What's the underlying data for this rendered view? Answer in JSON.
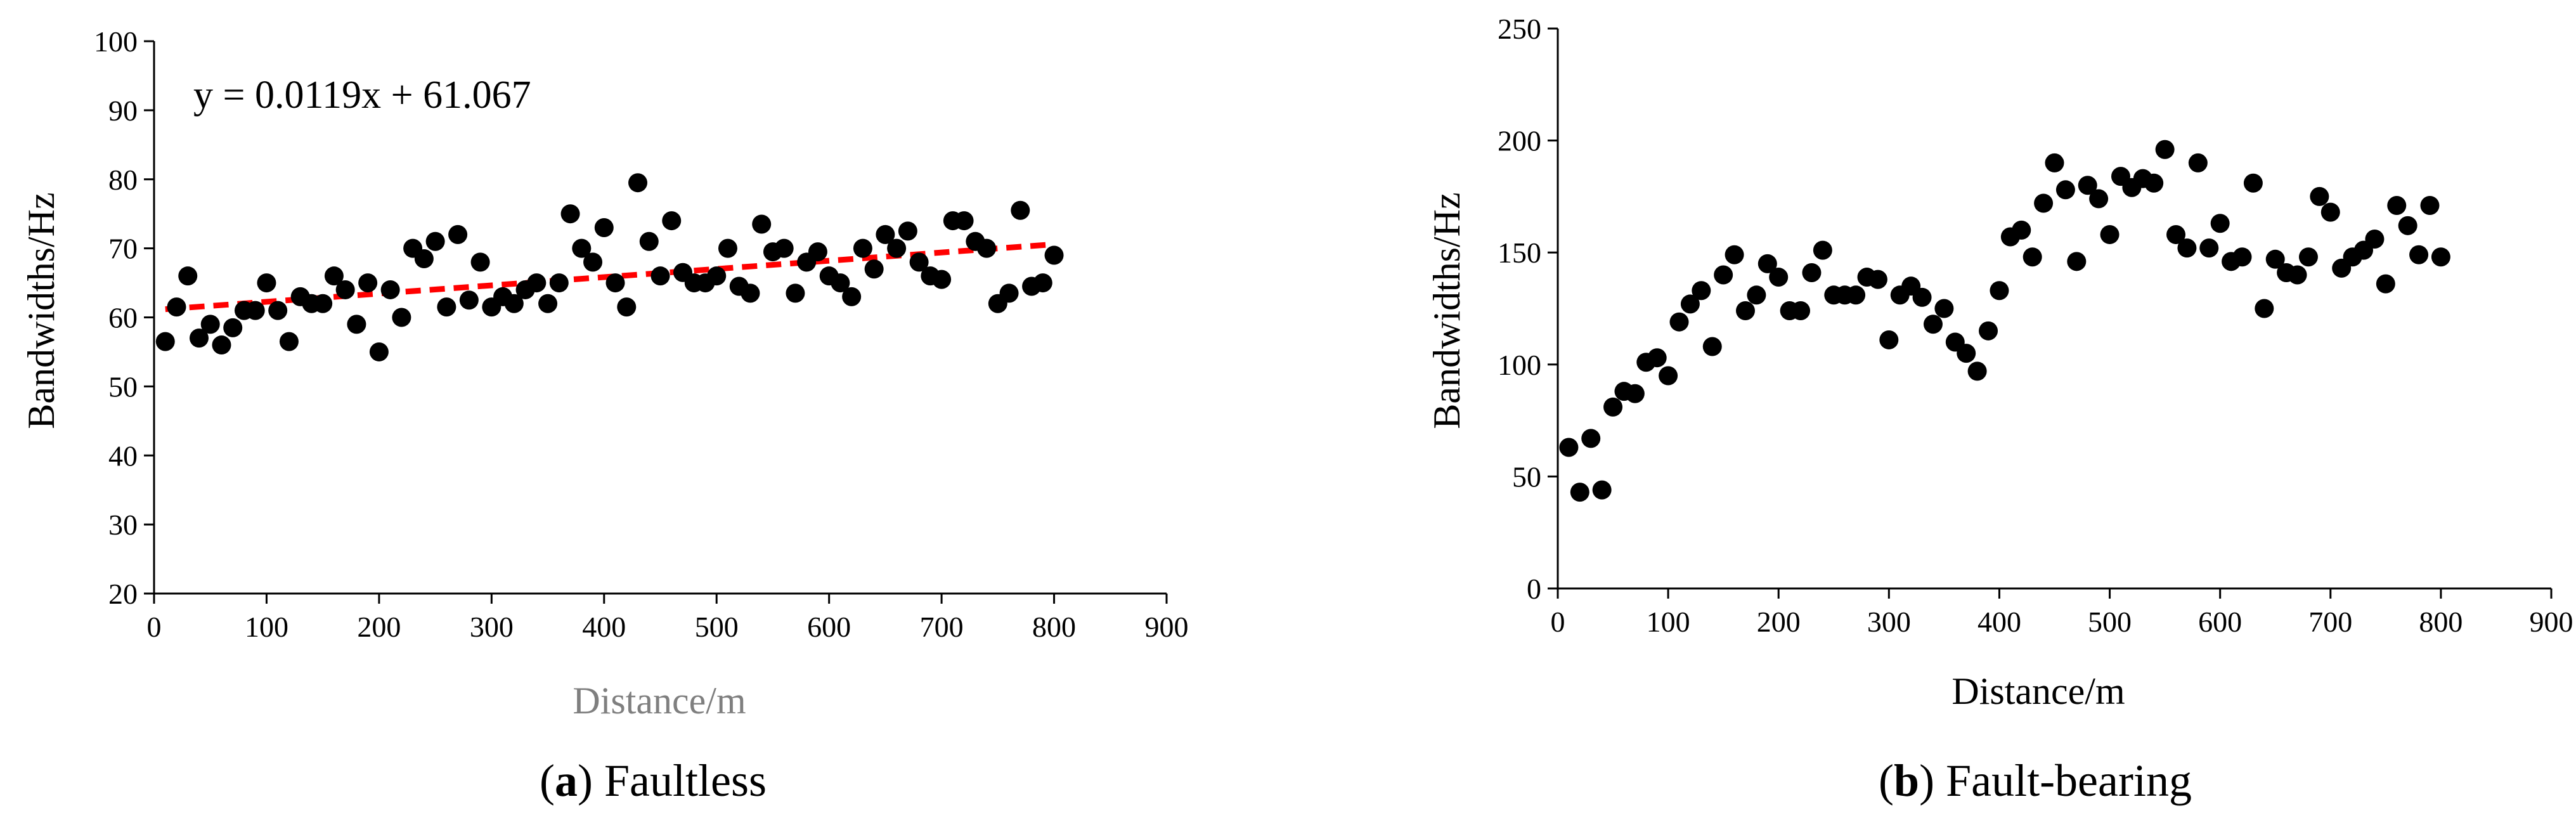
{
  "panels": [
    {
      "caption_letter": "a",
      "caption_text": "Faultless",
      "equation": "y = 0.0119x + 61.067",
      "chart_data": {
        "type": "scatter",
        "xlabel": "Distance/m",
        "ylabel": "Bandwidths/Hz",
        "xlim": [
          0,
          900
        ],
        "ylim": [
          20,
          100
        ],
        "xticks": [
          0,
          100,
          200,
          300,
          400,
          500,
          600,
          700,
          800,
          900
        ],
        "yticks": [
          20,
          30,
          40,
          50,
          60,
          70,
          80,
          90,
          100
        ],
        "grid": false,
        "marker_color": "#000000",
        "xlabel_color": "#7f7f7f",
        "series": [
          {
            "x": [
              10,
              20,
              30,
              40,
              50,
              60,
              70,
              80,
              90,
              100,
              110,
              120,
              130,
              140,
              150,
              160,
              170,
              180,
              190,
              200,
              210,
              220,
              230,
              240,
              250,
              260,
              270,
              280,
              290,
              300,
              310,
              320,
              330,
              340,
              350,
              360,
              370,
              380,
              390,
              400,
              410,
              420,
              430,
              440,
              450,
              460,
              470,
              480,
              490,
              500,
              510,
              520,
              530,
              540,
              550,
              560,
              570,
              580,
              590,
              600,
              610,
              620,
              630,
              640,
              650,
              660,
              670,
              680,
              690,
              700,
              710,
              720,
              730,
              740,
              750,
              760,
              770,
              780,
              790,
              800
            ],
            "y": [
              56.5,
              61.5,
              66,
              57,
              59,
              56,
              58.5,
              61,
              61,
              65,
              61,
              56.5,
              63,
              62,
              62,
              66,
              64,
              59,
              65,
              55,
              64,
              60,
              70,
              68.5,
              71,
              61.5,
              72,
              62.5,
              68,
              61.5,
              63,
              62,
              64,
              65,
              62,
              65,
              75,
              70,
              68,
              73,
              65,
              61.5,
              79.5,
              71,
              66,
              74,
              66.5,
              65,
              65,
              66,
              70,
              64.5,
              63.5,
              73.5,
              69.5,
              70,
              63.5,
              68,
              69.5,
              66,
              65,
              63,
              70,
              67,
              72,
              70,
              72.5,
              68,
              66,
              65.5,
              74,
              74,
              71,
              70,
              62,
              63.5,
              75.5,
              64.5,
              65,
              69
            ]
          }
        ],
        "trendline": {
          "type": "linear",
          "slope": 0.0119,
          "intercept": 61.067,
          "x_range": [
            10,
            800
          ],
          "color": "#ff0000",
          "style": "dashed"
        }
      }
    },
    {
      "caption_letter": "b",
      "caption_text": "Fault-bearing",
      "chart_data": {
        "type": "scatter",
        "xlabel": "Distance/m",
        "ylabel": "Bandwidths/Hz",
        "xlim": [
          0,
          900
        ],
        "ylim": [
          0,
          250
        ],
        "xticks": [
          0,
          100,
          200,
          300,
          400,
          500,
          600,
          700,
          800,
          900
        ],
        "yticks": [
          0,
          50,
          100,
          150,
          200,
          250
        ],
        "grid": false,
        "marker_color": "#000000",
        "series": [
          {
            "x": [
              10,
              20,
              30,
              40,
              50,
              60,
              70,
              80,
              90,
              100,
              110,
              120,
              130,
              140,
              150,
              160,
              170,
              180,
              190,
              200,
              210,
              220,
              230,
              240,
              250,
              260,
              270,
              280,
              290,
              300,
              310,
              320,
              330,
              340,
              350,
              360,
              370,
              380,
              390,
              400,
              410,
              420,
              430,
              440,
              450,
              460,
              470,
              480,
              490,
              500,
              510,
              520,
              530,
              540,
              550,
              560,
              570,
              580,
              590,
              600,
              610,
              620,
              630,
              640,
              650,
              660,
              670,
              680,
              690,
              700,
              710,
              720,
              730,
              740,
              750,
              760,
              770,
              780,
              790,
              800
            ],
            "y": [
              63,
              43,
              67,
              44,
              81,
              88,
              87,
              101,
              103,
              95,
              119,
              127,
              133,
              108,
              140,
              149,
              124,
              131,
              145,
              139,
              124,
              124,
              141,
              151,
              131,
              131,
              131,
              139,
              138,
              111,
              131,
              135,
              130,
              118,
              125,
              110,
              105,
              97,
              115,
              133,
              157,
              160,
              148,
              172,
              190,
              178,
              146,
              180,
              174,
              158,
              184,
              179,
              183,
              181,
              196,
              158,
              152,
              190,
              152,
              163,
              146,
              148,
              181,
              125,
              147,
              141,
              140,
              148,
              175,
              168,
              143,
              148,
              151,
              156,
              136,
              171,
              162,
              149,
              171,
              148
            ]
          }
        ]
      }
    }
  ]
}
